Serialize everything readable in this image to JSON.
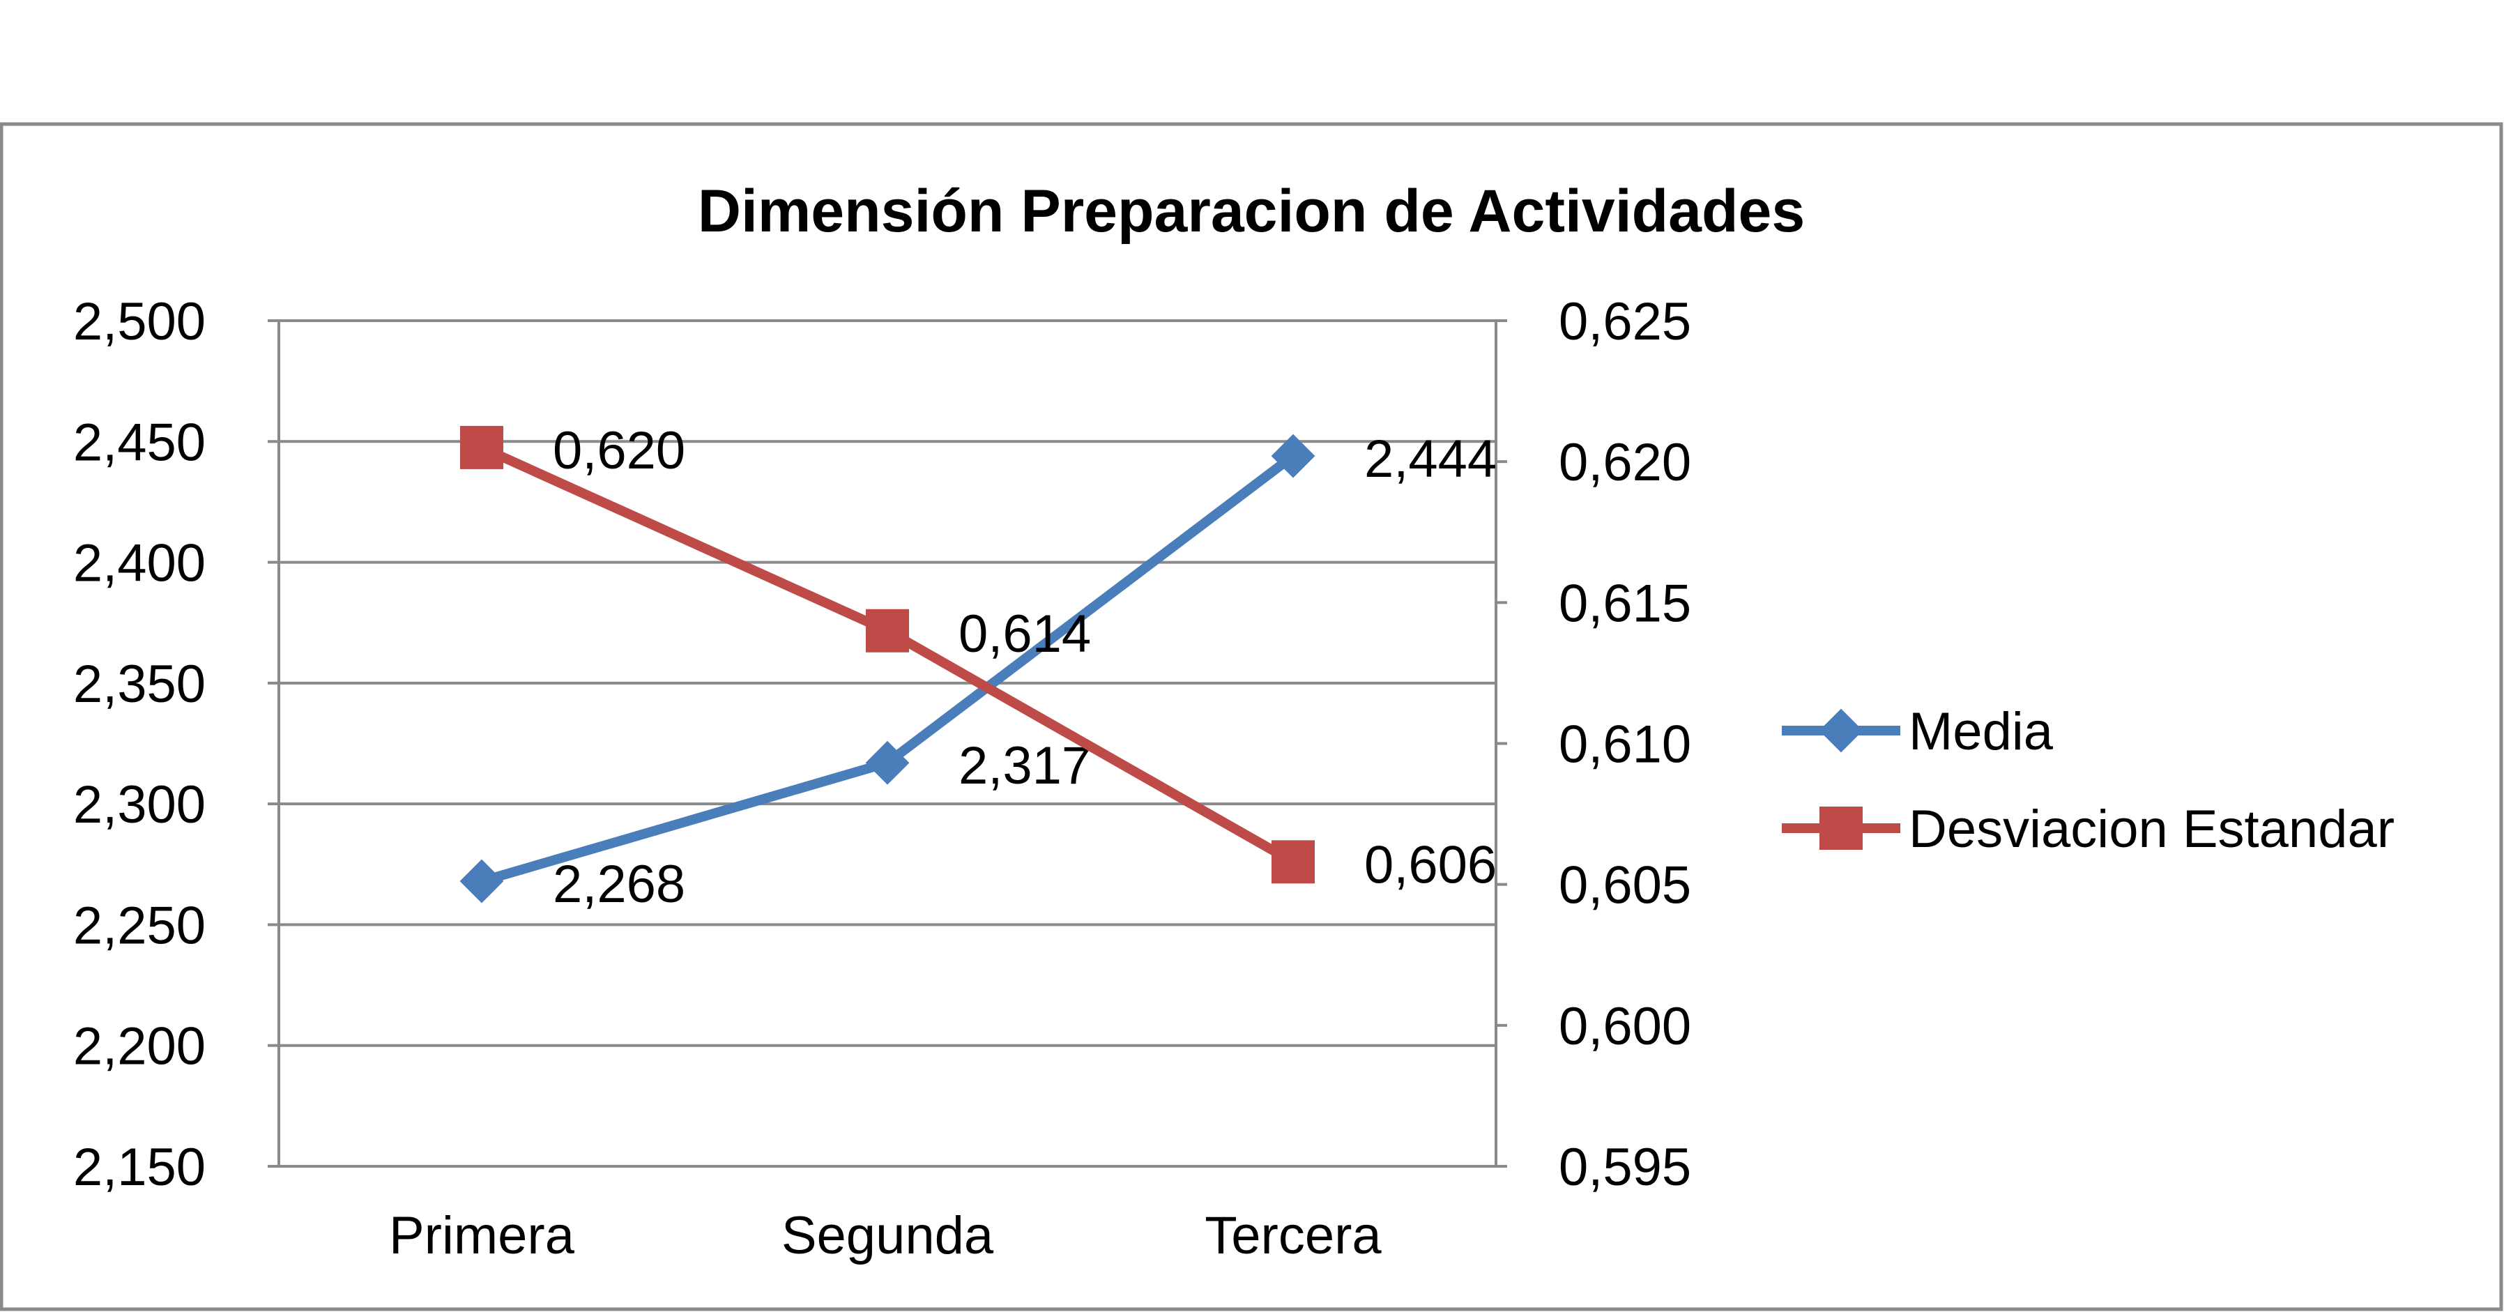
{
  "chart_data": {
    "type": "line",
    "title": "Dimensión Preparacion de Actividades",
    "categories": [
      "Primera",
      "Segunda",
      "Tercera"
    ],
    "y_left": {
      "range": [
        2.15,
        2.5
      ],
      "step": 0.05,
      "ticks": [
        "2,150",
        "2,200",
        "2,250",
        "2,300",
        "2,350",
        "2,400",
        "2,450",
        "2,500"
      ]
    },
    "y_right": {
      "range": [
        0.595,
        0.625
      ],
      "step": 0.005,
      "ticks": [
        "0,595",
        "0,600",
        "0,605",
        "0,610",
        "0,615",
        "0,620",
        "0,625"
      ]
    },
    "series": [
      {
        "name": "Media",
        "axis": "left",
        "color": "#4a7ebb",
        "marker": "diamond",
        "values": [
          2.268,
          2.317,
          2.444
        ],
        "labels": [
          "2,268",
          "2,317",
          "2,444"
        ]
      },
      {
        "name": "Desviacion Estandar",
        "axis": "right",
        "color": "#be4b48",
        "marker": "square",
        "values": [
          0.6205,
          0.614,
          0.6058
        ],
        "labels": [
          "0,620",
          "0,614",
          "0,606"
        ]
      }
    ],
    "grid": true,
    "legend": "right"
  }
}
